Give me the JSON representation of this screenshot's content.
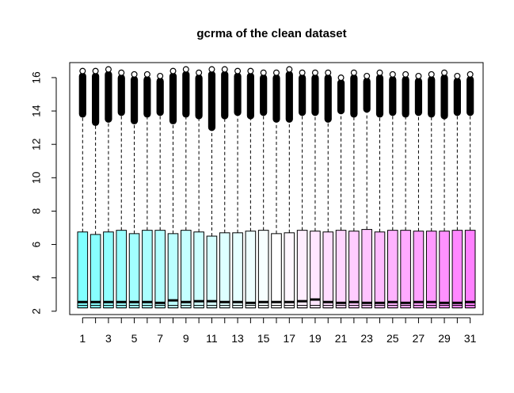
{
  "chart_data": {
    "type": "boxplot",
    "title": "gcrma of the clean dataset",
    "xlabel": "",
    "ylabel": "",
    "ylim": [
      1.8,
      16.9
    ],
    "xlim": [
      0,
      32
    ],
    "y_ticks": [
      "2",
      "4",
      "6",
      "8",
      "10",
      "12",
      "14",
      "16"
    ],
    "x_ticks": [
      "1",
      "3",
      "5",
      "7",
      "9",
      "11",
      "13",
      "15",
      "17",
      "19",
      "21",
      "23",
      "25",
      "27",
      "29",
      "31"
    ],
    "grid": false,
    "legend": "none",
    "color_gradient": {
      "start": "#80ffff",
      "mid": "#ffffff",
      "end": "#ff80ff"
    },
    "boxes": [
      {
        "sample": 1,
        "min": 2.2,
        "q1": 2.35,
        "median": 2.55,
        "q3": 6.75,
        "upper_whisker": 13.6,
        "outlier_min": 13.6,
        "outlier_max": 16.3,
        "color": "#80ffff"
      },
      {
        "sample": 2,
        "min": 2.2,
        "q1": 2.35,
        "median": 2.55,
        "q3": 6.6,
        "upper_whisker": 13.1,
        "outlier_min": 13.1,
        "outlier_max": 16.3,
        "color": "#88ffff"
      },
      {
        "sample": 3,
        "min": 2.2,
        "q1": 2.35,
        "median": 2.55,
        "q3": 6.75,
        "upper_whisker": 13.3,
        "outlier_min": 13.3,
        "outlier_max": 16.4,
        "color": "#91ffff"
      },
      {
        "sample": 4,
        "min": 2.2,
        "q1": 2.35,
        "median": 2.55,
        "q3": 6.85,
        "upper_whisker": 13.7,
        "outlier_min": 13.7,
        "outlier_max": 16.2,
        "color": "#99ffff"
      },
      {
        "sample": 5,
        "min": 2.2,
        "q1": 2.35,
        "median": 2.55,
        "q3": 6.65,
        "upper_whisker": 13.2,
        "outlier_min": 13.2,
        "outlier_max": 16.1,
        "color": "#a2ffff"
      },
      {
        "sample": 6,
        "min": 2.2,
        "q1": 2.35,
        "median": 2.55,
        "q3": 6.85,
        "upper_whisker": 13.6,
        "outlier_min": 13.6,
        "outlier_max": 16.1,
        "color": "#aaffff"
      },
      {
        "sample": 7,
        "min": 2.2,
        "q1": 2.35,
        "median": 2.5,
        "q3": 6.85,
        "upper_whisker": 13.7,
        "outlier_min": 13.7,
        "outlier_max": 16.0,
        "color": "#b3ffff"
      },
      {
        "sample": 8,
        "min": 2.2,
        "q1": 2.35,
        "median": 2.65,
        "q3": 6.65,
        "upper_whisker": 13.2,
        "outlier_min": 13.2,
        "outlier_max": 16.3,
        "color": "#bbffff"
      },
      {
        "sample": 9,
        "min": 2.2,
        "q1": 2.35,
        "median": 2.55,
        "q3": 6.85,
        "upper_whisker": 13.6,
        "outlier_min": 13.6,
        "outlier_max": 16.4,
        "color": "#c4ffff"
      },
      {
        "sample": 10,
        "min": 2.2,
        "q1": 2.35,
        "median": 2.6,
        "q3": 6.75,
        "upper_whisker": 13.5,
        "outlier_min": 13.5,
        "outlier_max": 16.2,
        "color": "#ccffff"
      },
      {
        "sample": 11,
        "min": 2.2,
        "q1": 2.35,
        "median": 2.6,
        "q3": 6.5,
        "upper_whisker": 12.8,
        "outlier_min": 12.8,
        "outlier_max": 16.4,
        "color": "#d5ffff"
      },
      {
        "sample": 12,
        "min": 2.2,
        "q1": 2.35,
        "median": 2.55,
        "q3": 6.7,
        "upper_whisker": 13.5,
        "outlier_min": 13.5,
        "outlier_max": 16.4,
        "color": "#ddffff"
      },
      {
        "sample": 13,
        "min": 2.2,
        "q1": 2.35,
        "median": 2.55,
        "q3": 6.7,
        "upper_whisker": 13.7,
        "outlier_min": 13.7,
        "outlier_max": 16.3,
        "color": "#e6ffff"
      },
      {
        "sample": 14,
        "min": 2.2,
        "q1": 2.35,
        "median": 2.5,
        "q3": 6.8,
        "upper_whisker": 13.5,
        "outlier_min": 13.5,
        "outlier_max": 16.3,
        "color": "#eeffff"
      },
      {
        "sample": 15,
        "min": 2.2,
        "q1": 2.35,
        "median": 2.55,
        "q3": 6.85,
        "upper_whisker": 13.7,
        "outlier_min": 13.7,
        "outlier_max": 16.2,
        "color": "#f7ffff"
      },
      {
        "sample": 16,
        "min": 2.2,
        "q1": 2.35,
        "median": 2.55,
        "q3": 6.65,
        "upper_whisker": 13.3,
        "outlier_min": 13.3,
        "outlier_max": 16.2,
        "color": "#ffffff"
      },
      {
        "sample": 17,
        "min": 2.2,
        "q1": 2.35,
        "median": 2.55,
        "q3": 6.7,
        "upper_whisker": 13.3,
        "outlier_min": 13.3,
        "outlier_max": 16.4,
        "color": "#fff7ff"
      },
      {
        "sample": 18,
        "min": 2.2,
        "q1": 2.35,
        "median": 2.6,
        "q3": 6.85,
        "upper_whisker": 13.7,
        "outlier_min": 13.7,
        "outlier_max": 16.2,
        "color": "#ffeeff"
      },
      {
        "sample": 19,
        "min": 2.2,
        "q1": 2.35,
        "median": 2.7,
        "q3": 6.8,
        "upper_whisker": 13.7,
        "outlier_min": 13.7,
        "outlier_max": 16.2,
        "color": "#ffe6ff"
      },
      {
        "sample": 20,
        "min": 2.2,
        "q1": 2.35,
        "median": 2.55,
        "q3": 6.75,
        "upper_whisker": 13.3,
        "outlier_min": 13.3,
        "outlier_max": 16.2,
        "color": "#ffddff"
      },
      {
        "sample": 21,
        "min": 2.2,
        "q1": 2.35,
        "median": 2.5,
        "q3": 6.85,
        "upper_whisker": 13.8,
        "outlier_min": 13.8,
        "outlier_max": 15.9,
        "color": "#ffd5ff"
      },
      {
        "sample": 22,
        "min": 2.2,
        "q1": 2.35,
        "median": 2.55,
        "q3": 6.8,
        "upper_whisker": 13.6,
        "outlier_min": 13.6,
        "outlier_max": 16.2,
        "color": "#ffccff"
      },
      {
        "sample": 23,
        "min": 2.2,
        "q1": 2.35,
        "median": 2.5,
        "q3": 6.9,
        "upper_whisker": 13.9,
        "outlier_min": 13.9,
        "outlier_max": 16.0,
        "color": "#ffc4ff"
      },
      {
        "sample": 24,
        "min": 2.2,
        "q1": 2.35,
        "median": 2.5,
        "q3": 6.75,
        "upper_whisker": 13.6,
        "outlier_min": 13.6,
        "outlier_max": 16.2,
        "color": "#ffbbff"
      },
      {
        "sample": 25,
        "min": 2.2,
        "q1": 2.35,
        "median": 2.55,
        "q3": 6.85,
        "upper_whisker": 13.7,
        "outlier_min": 13.7,
        "outlier_max": 16.1,
        "color": "#ffb3ff"
      },
      {
        "sample": 26,
        "min": 2.2,
        "q1": 2.35,
        "median": 2.5,
        "q3": 6.85,
        "upper_whisker": 13.6,
        "outlier_min": 13.6,
        "outlier_max": 16.1,
        "color": "#ffaaff"
      },
      {
        "sample": 27,
        "min": 2.2,
        "q1": 2.35,
        "median": 2.55,
        "q3": 6.8,
        "upper_whisker": 13.7,
        "outlier_min": 13.7,
        "outlier_max": 16.0,
        "color": "#ffa2ff"
      },
      {
        "sample": 28,
        "min": 2.2,
        "q1": 2.35,
        "median": 2.55,
        "q3": 6.8,
        "upper_whisker": 13.6,
        "outlier_min": 13.6,
        "outlier_max": 16.1,
        "color": "#ff99ff"
      },
      {
        "sample": 29,
        "min": 2.2,
        "q1": 2.35,
        "median": 2.5,
        "q3": 6.8,
        "upper_whisker": 13.5,
        "outlier_min": 13.5,
        "outlier_max": 16.2,
        "color": "#ff91ff"
      },
      {
        "sample": 30,
        "min": 2.2,
        "q1": 2.35,
        "median": 2.5,
        "q3": 6.85,
        "upper_whisker": 13.7,
        "outlier_min": 13.7,
        "outlier_max": 16.0,
        "color": "#ff88ff"
      },
      {
        "sample": 31,
        "min": 2.2,
        "q1": 2.35,
        "median": 2.55,
        "q3": 6.85,
        "upper_whisker": 13.7,
        "outlier_min": 13.7,
        "outlier_max": 16.1,
        "color": "#ff80ff"
      }
    ]
  }
}
